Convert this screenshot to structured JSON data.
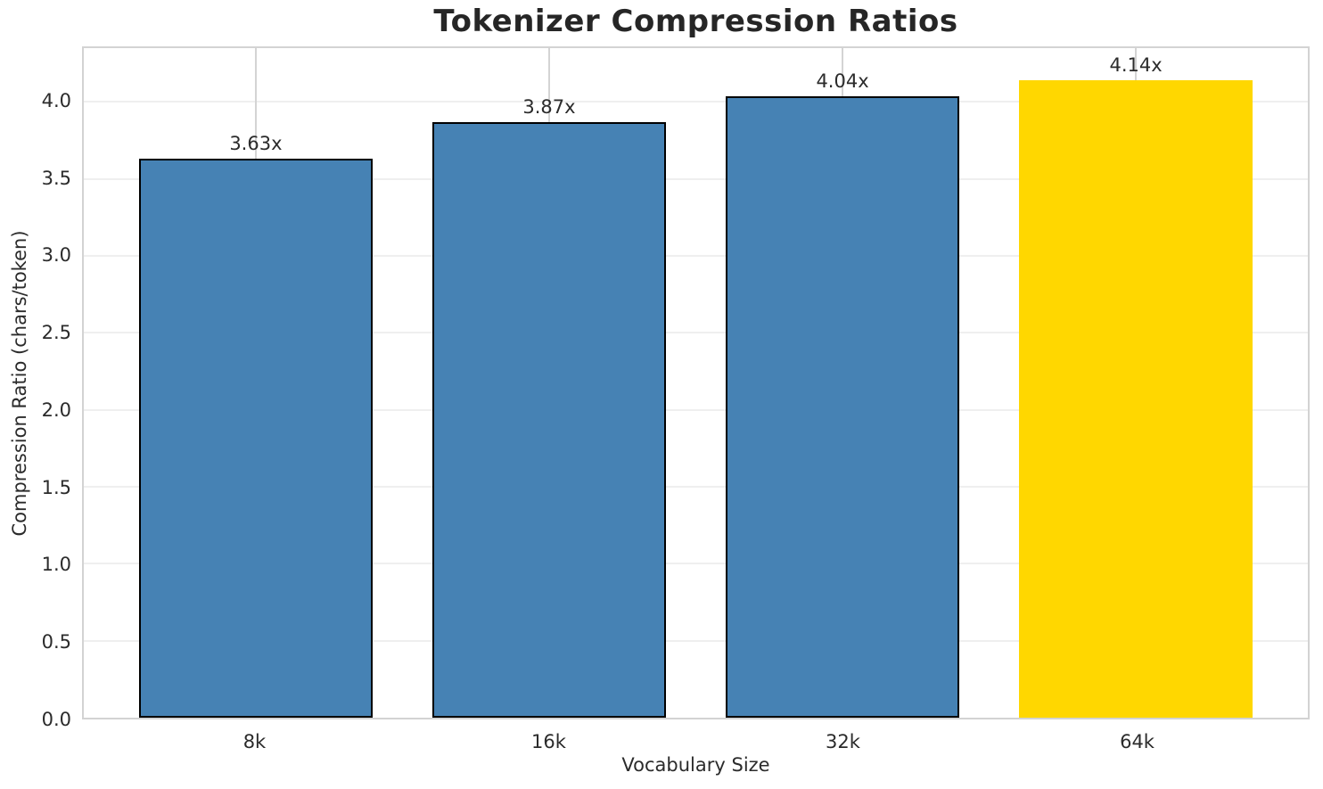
{
  "chart_data": {
    "type": "bar",
    "title": "Tokenizer Compression Ratios",
    "xlabel": "Vocabulary Size",
    "ylabel": "Compression Ratio (chars/token)",
    "categories": [
      "8k",
      "16k",
      "32k",
      "64k"
    ],
    "values": [
      3.63,
      3.87,
      4.04,
      4.14
    ],
    "bar_labels": [
      "3.63x",
      "3.87x",
      "4.04x",
      "4.14x"
    ],
    "highlight_index": 3,
    "bar_color": "#4682B4",
    "highlight_color": "#FFD700",
    "edge_color": "#000000",
    "ylim": [
      0,
      4.35
    ],
    "yticks": [
      0.0,
      0.5,
      1.0,
      1.5,
      2.0,
      2.5,
      3.0,
      3.5,
      4.0
    ],
    "ytick_labels": [
      "0.0",
      "0.5",
      "1.0",
      "1.5",
      "2.0",
      "2.5",
      "3.0",
      "3.5",
      "4.0"
    ],
    "grid": "both",
    "legend": "none"
  }
}
